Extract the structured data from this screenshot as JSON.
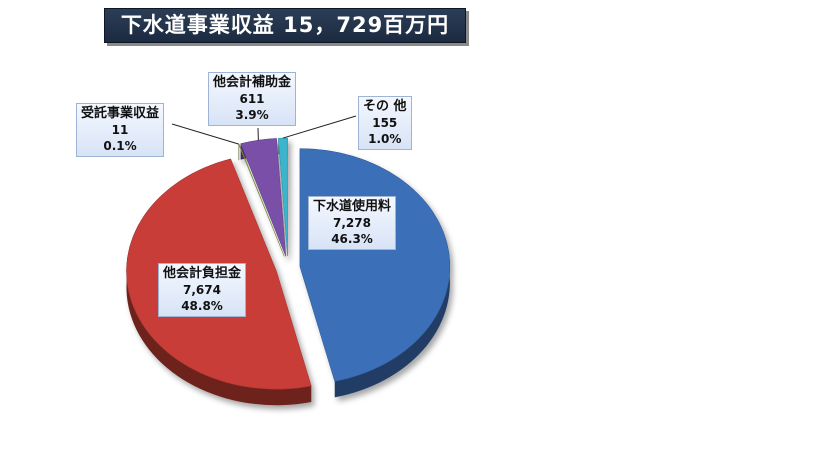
{
  "title": "下水道事業収益 15，729百万円",
  "chart_data": {
    "type": "pie",
    "title": "下水道事業収益 15，729百万円",
    "unit": "百万円",
    "slices": [
      {
        "label": "下水道使用料",
        "value": 7278,
        "value_text": "7,278",
        "percent": "46.3%",
        "color": "#3a6fb8"
      },
      {
        "label": "他会計負担金",
        "value": 7674,
        "value_text": "7,674",
        "percent": "48.8%",
        "color": "#c83c38"
      },
      {
        "label": "受託事業収益",
        "value": 11,
        "value_text": "11",
        "percent": "0.1%",
        "color": "#8aa83c"
      },
      {
        "label": "他会計補助金",
        "value": 611,
        "value_text": "611",
        "percent": "3.9%",
        "color": "#7a4fa8"
      },
      {
        "label": "その 他",
        "value": 155,
        "value_text": "155",
        "percent": "1.0%",
        "color": "#3ab4cc"
      }
    ]
  }
}
